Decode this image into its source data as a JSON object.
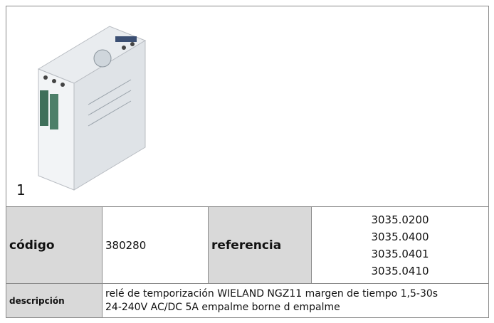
{
  "product": {
    "image_number": "1"
  },
  "table": {
    "code_label": "código",
    "code": "380280",
    "reference_label": "referencia",
    "references": [
      "3035.0200",
      "3035.0400",
      "3035.0401",
      "3035.0410"
    ],
    "description_label": "descripción",
    "description_lines": [
      "relé de temporización  WIELAND NGZ11 margen de tiempo 1,5-30s",
      "24-240V AC/DC 5A empalme borne d empalme"
    ]
  }
}
